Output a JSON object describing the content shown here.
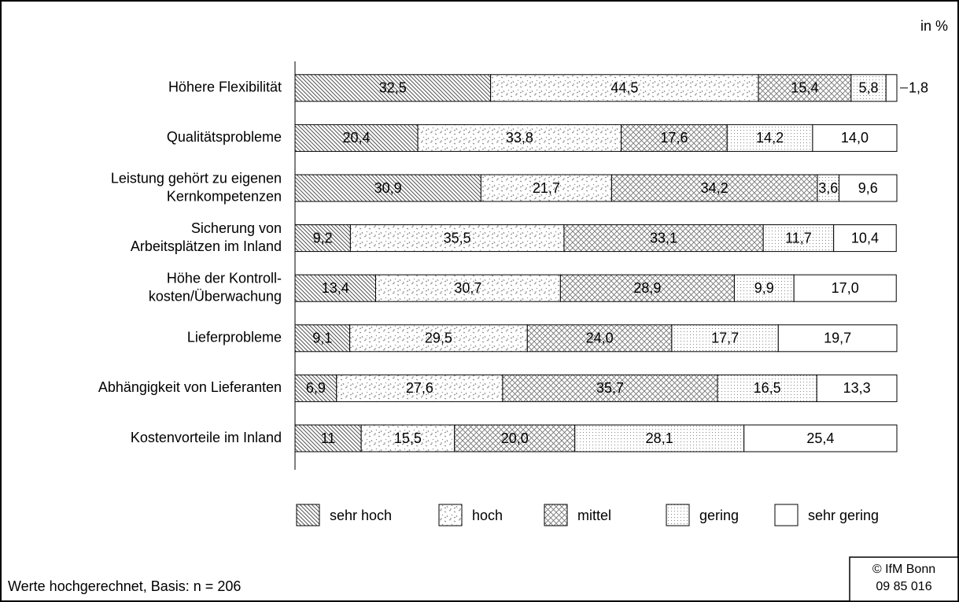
{
  "chart_data": {
    "type": "stacked-bar-horizontal",
    "unit_label": "in %",
    "footnote": "Werte hochgerechnet, Basis: n = 206",
    "source": [
      "© IfM Bonn",
      "09 85 016"
    ],
    "categories": [
      "Höhere Flexibilität",
      "Qualitätsprobleme",
      [
        "Leistung gehört zu eigenen",
        "Kernkompetenzen"
      ],
      [
        "Sicherung von",
        "Arbeitsplätzen im Inland"
      ],
      [
        "Höhe der Kontroll-",
        "kosten/Überwachung"
      ],
      "Lieferprobleme",
      "Abhängigkeit von Lieferanten",
      "Kostenvorteile im Inland"
    ],
    "xlim": [
      0,
      100
    ],
    "legend": "bottom",
    "series": [
      {
        "name": "sehr hoch",
        "pattern": "diagonal",
        "values": [
          32.5,
          20.4,
          30.9,
          9.2,
          13.4,
          9.1,
          6.9,
          11
        ],
        "value_labels": [
          "32,5",
          "20,4",
          "30,9",
          "9,2",
          "13,4",
          "9,1",
          "6,9",
          "11"
        ]
      },
      {
        "name": "hoch",
        "pattern": "scatter",
        "values": [
          44.5,
          33.8,
          21.7,
          35.5,
          30.7,
          29.5,
          27.6,
          15.5
        ],
        "value_labels": [
          "44,5",
          "33,8",
          "21,7",
          "35,5",
          "30,7",
          "29,5",
          "27,6",
          "15,5"
        ]
      },
      {
        "name": "mittel",
        "pattern": "cross",
        "values": [
          15.4,
          17.6,
          34.2,
          33.1,
          28.9,
          24.0,
          35.7,
          20.0
        ],
        "value_labels": [
          "15,4",
          "17,6",
          "34,2",
          "33,1",
          "28,9",
          "24,0",
          "35,7",
          "20,0"
        ]
      },
      {
        "name": "gering",
        "pattern": "dots",
        "values": [
          5.8,
          14.2,
          3.6,
          11.7,
          9.9,
          17.7,
          16.5,
          28.1
        ],
        "value_labels": [
          "5,8",
          "14,2",
          "3,6",
          "11,7",
          "9,9",
          "17,7",
          "16,5",
          "28,1"
        ]
      },
      {
        "name": "sehr gering",
        "pattern": "none",
        "values": [
          1.8,
          14.0,
          9.6,
          10.4,
          17.0,
          19.7,
          13.3,
          25.4
        ],
        "value_labels": [
          "1,8",
          "14,0",
          "9,6",
          "10,4",
          "17,0",
          "19,7",
          "13,3",
          "25,4"
        ]
      }
    ]
  }
}
